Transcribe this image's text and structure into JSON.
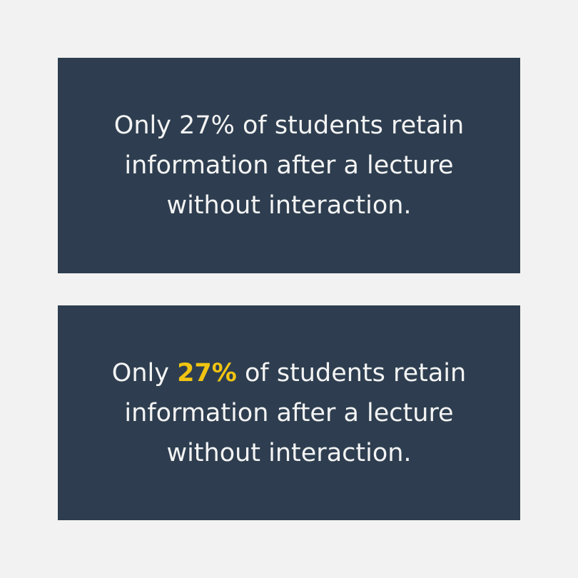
{
  "colors": {
    "background": "#f2f2f2",
    "card": "#2e3e50",
    "text": "#f4f4f4",
    "highlight": "#f2c412"
  },
  "card1": {
    "line1": "Only 27% of students retain",
    "line2": "information after a lecture",
    "line3": "without interaction."
  },
  "card2": {
    "before": "Only ",
    "highlight": "27%",
    "after": " of students retain",
    "line2": "information after a lecture",
    "line3": "without interaction."
  }
}
